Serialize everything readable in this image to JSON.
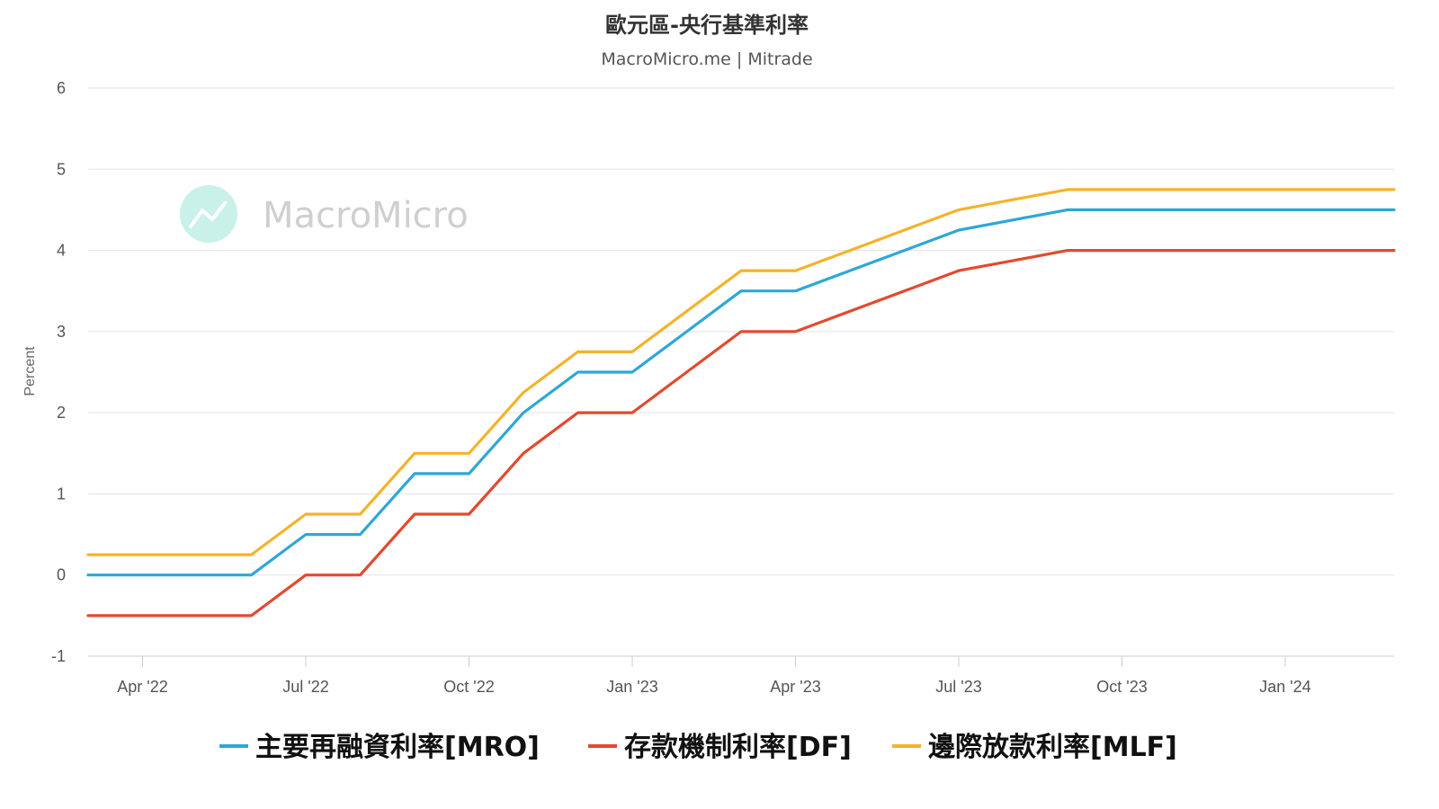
{
  "chart_data": {
    "type": "line",
    "title": "歐元區-央行基準利率",
    "subtitle": "MacroMicro.me | Mitrade",
    "watermark": "MacroMicro",
    "ylabel": "Percent",
    "xlabel": "",
    "ylim": [
      -1,
      6
    ],
    "yticks": [
      -1,
      0,
      1,
      2,
      3,
      4,
      5,
      6
    ],
    "grid": true,
    "legend_position": "bottom",
    "x_tick_labels": [
      "Apr '22",
      "Jul '22",
      "Oct '22",
      "Jan '23",
      "Apr '23",
      "Jul '23",
      "Oct '23",
      "Jan '24"
    ],
    "x": [
      "2022-03",
      "2022-04",
      "2022-05",
      "2022-06",
      "2022-07",
      "2022-08",
      "2022-09",
      "2022-10",
      "2022-11",
      "2022-12",
      "2023-01",
      "2023-02",
      "2023-03",
      "2023-04",
      "2023-05",
      "2023-06",
      "2023-07",
      "2023-08",
      "2023-09",
      "2023-10",
      "2023-11",
      "2023-12",
      "2024-01",
      "2024-02",
      "2024-03"
    ],
    "series": [
      {
        "name": "主要再融資利率[MRO]",
        "color": "#2ea7d8",
        "values": [
          0,
          0,
          0,
          0,
          0.5,
          0.5,
          1.25,
          1.25,
          2.0,
          2.5,
          2.5,
          3.0,
          3.5,
          3.5,
          3.75,
          4.0,
          4.25,
          4.375,
          4.5,
          4.5,
          4.5,
          4.5,
          4.5,
          4.5,
          4.5
        ]
      },
      {
        "name": "存款機制利率[DF]",
        "color": "#e24a2f",
        "values": [
          -0.5,
          -0.5,
          -0.5,
          -0.5,
          0,
          0,
          0.75,
          0.75,
          1.5,
          2.0,
          2.0,
          2.5,
          3.0,
          3.0,
          3.25,
          3.5,
          3.75,
          3.875,
          4.0,
          4.0,
          4.0,
          4.0,
          4.0,
          4.0,
          4.0
        ]
      },
      {
        "name": "邊際放款利率[MLF]",
        "color": "#f4b32c",
        "values": [
          0.25,
          0.25,
          0.25,
          0.25,
          0.75,
          0.75,
          1.5,
          1.5,
          2.25,
          2.75,
          2.75,
          3.25,
          3.75,
          3.75,
          4.0,
          4.25,
          4.5,
          4.625,
          4.75,
          4.75,
          4.75,
          4.75,
          4.75,
          4.75,
          4.75
        ]
      }
    ]
  }
}
